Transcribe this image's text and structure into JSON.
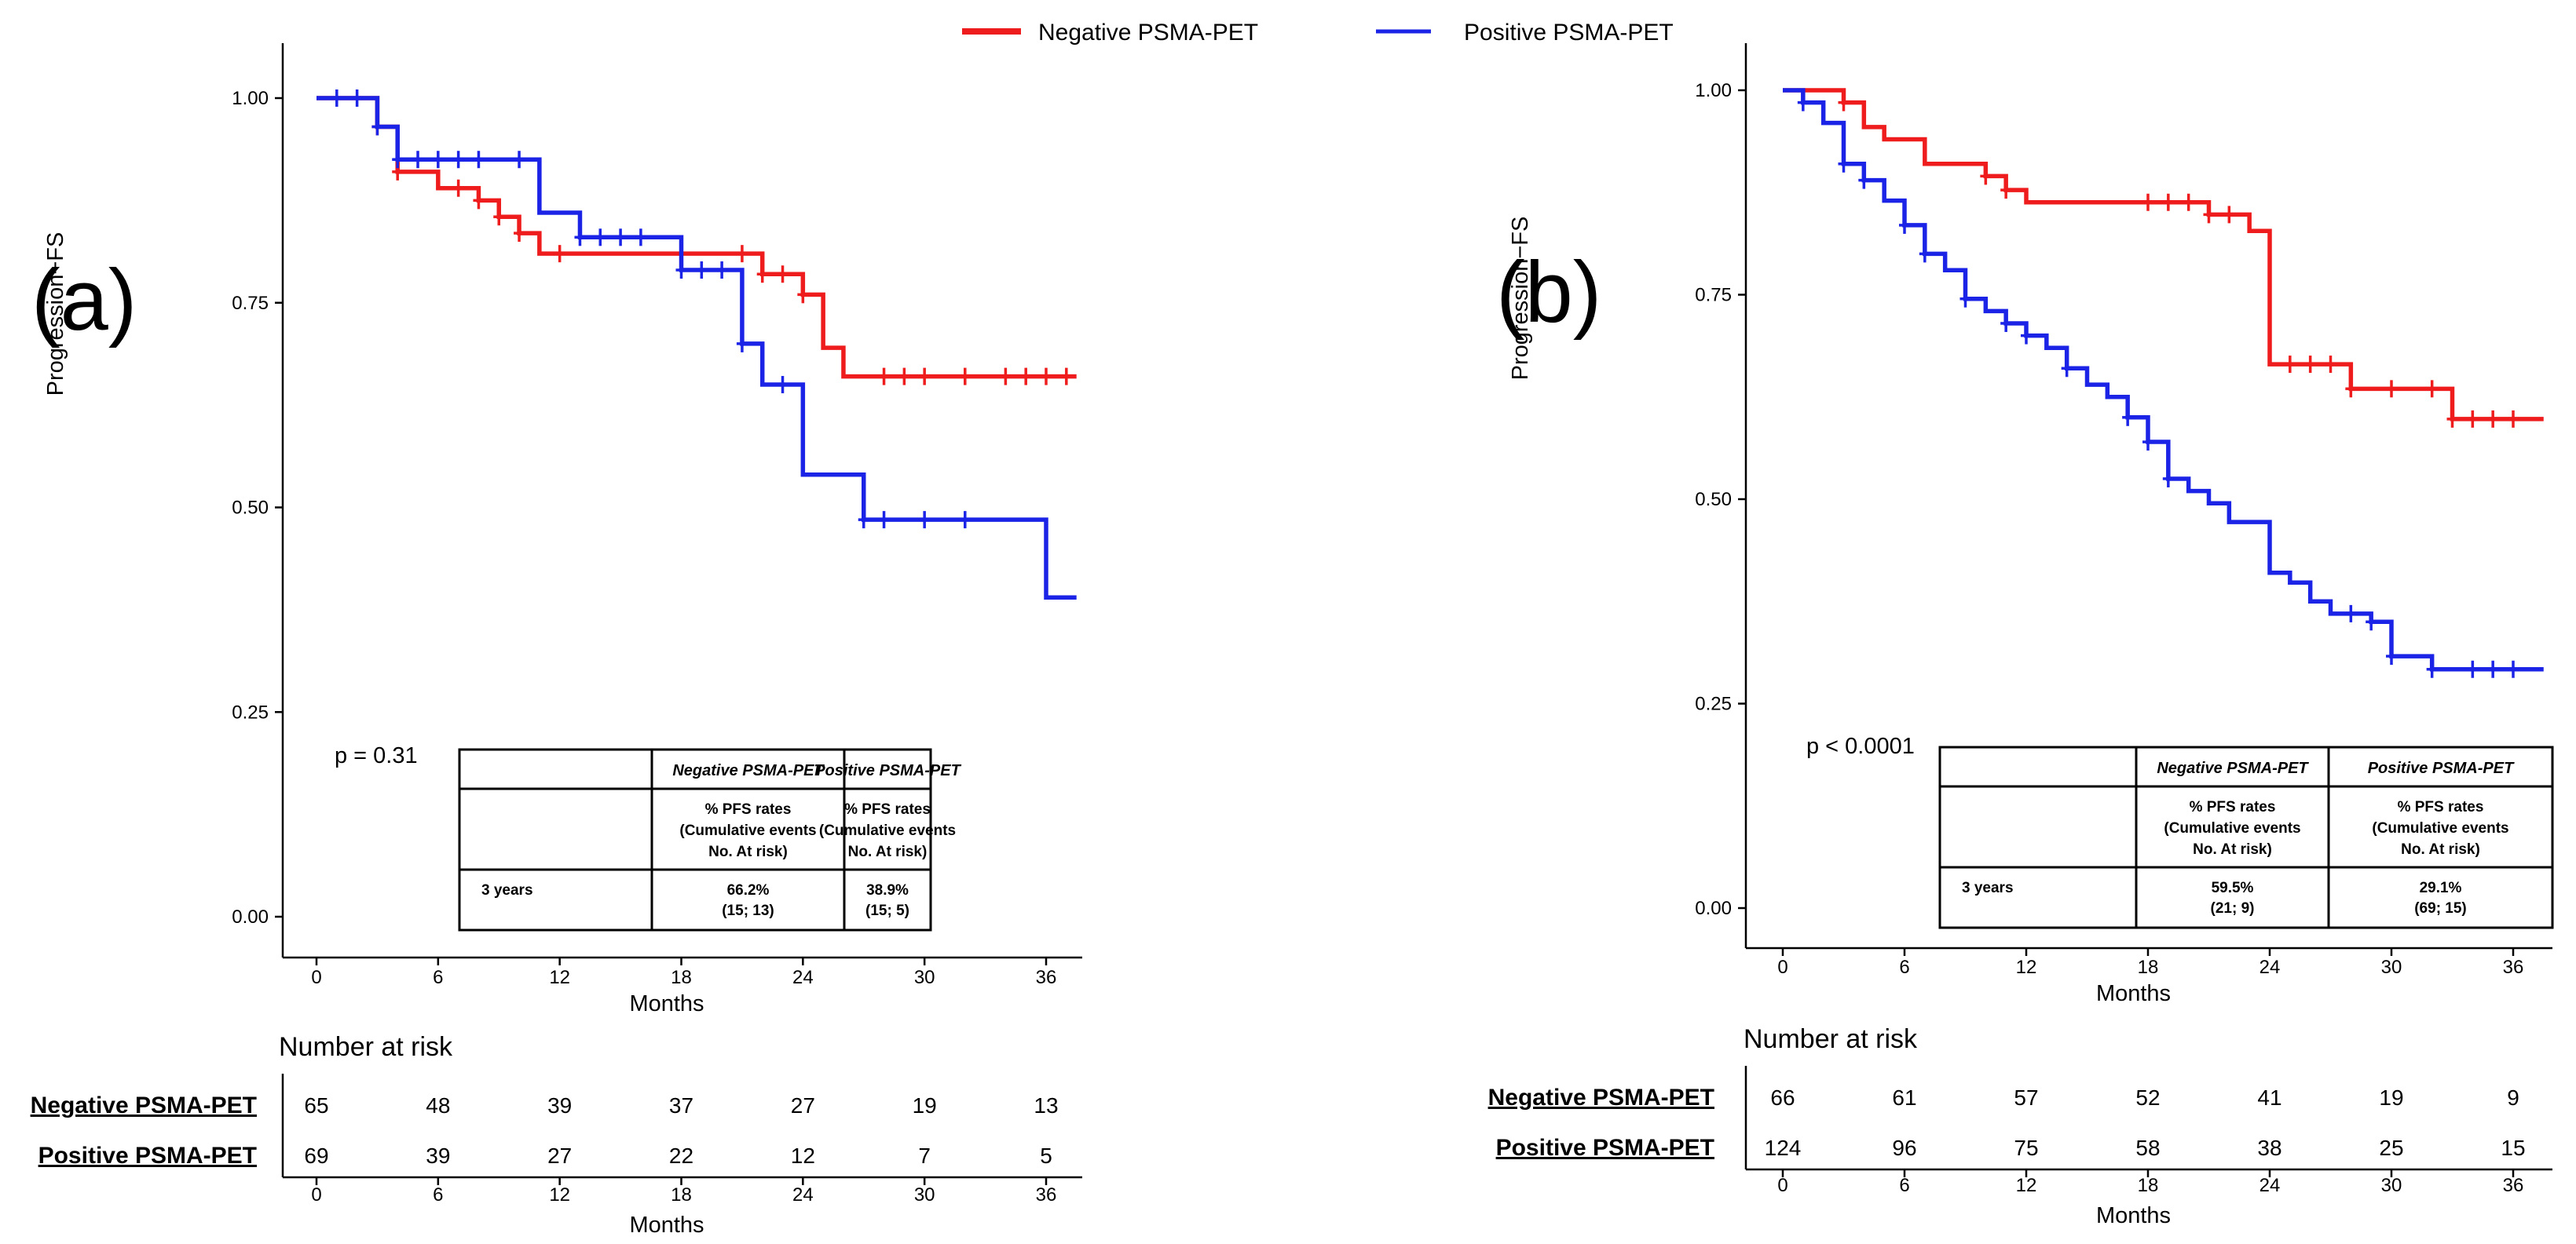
{
  "legend": {
    "items": [
      {
        "label": "Negative PSMA-PET",
        "color": "#ee1c1c"
      },
      {
        "label": "Positive PSMA-PET",
        "color": "#1a23e6"
      }
    ]
  },
  "chart_data": [
    {
      "type": "line",
      "panel_label": "(a)",
      "ylabel": "Progression−FS",
      "xlabel": "Months",
      "ylim": [
        0,
        1.05
      ],
      "xlim": [
        -2,
        37.5
      ],
      "xticks": [
        0,
        6,
        12,
        18,
        24,
        30,
        36
      ],
      "yticks": [
        "0.00",
        "0.25",
        "0.50",
        "0.75",
        "1.00"
      ],
      "p_value": "p = 0.31",
      "series": [
        {
          "name": "Negative PSMA-PET",
          "color": "#ee1c1c",
          "steps": [
            [
              0,
              1.0
            ],
            [
              3,
              0.965
            ],
            [
              4,
              0.91
            ],
            [
              6,
              0.89
            ],
            [
              8,
              0.875
            ],
            [
              9,
              0.855
            ],
            [
              10,
              0.835
            ],
            [
              11,
              0.81
            ],
            [
              21,
              0.81
            ],
            [
              22,
              0.785
            ],
            [
              24,
              0.76
            ],
            [
              25,
              0.695
            ],
            [
              26,
              0.66
            ],
            [
              37.5,
              0.66
            ]
          ],
          "censor": [
            [
              3,
              0.965
            ],
            [
              4,
              0.91
            ],
            [
              7,
              0.89
            ],
            [
              8,
              0.875
            ],
            [
              9,
              0.855
            ],
            [
              10,
              0.835
            ],
            [
              12,
              0.81
            ],
            [
              21,
              0.81
            ],
            [
              22,
              0.785
            ],
            [
              23,
              0.785
            ],
            [
              24,
              0.76
            ],
            [
              28,
              0.66
            ],
            [
              29,
              0.66
            ],
            [
              30,
              0.66
            ],
            [
              32,
              0.66
            ],
            [
              34,
              0.66
            ],
            [
              35,
              0.66
            ],
            [
              36,
              0.66
            ],
            [
              37,
              0.66
            ]
          ]
        },
        {
          "name": "Positive PSMA-PET",
          "color": "#1a23e6",
          "steps": [
            [
              0,
              1.0
            ],
            [
              3,
              0.965
            ],
            [
              4,
              0.925
            ],
            [
              11,
              0.86
            ],
            [
              13,
              0.83
            ],
            [
              18,
              0.79
            ],
            [
              21,
              0.7
            ],
            [
              22,
              0.65
            ],
            [
              24,
              0.54
            ],
            [
              27,
              0.485
            ],
            [
              36,
              0.39
            ],
            [
              37.5,
              0.39
            ]
          ],
          "censor": [
            [
              1,
              1.0
            ],
            [
              2,
              1.0
            ],
            [
              3,
              0.965
            ],
            [
              4,
              0.925
            ],
            [
              5,
              0.925
            ],
            [
              6,
              0.925
            ],
            [
              7,
              0.925
            ],
            [
              8,
              0.925
            ],
            [
              10,
              0.925
            ],
            [
              13,
              0.83
            ],
            [
              14,
              0.83
            ],
            [
              15,
              0.83
            ],
            [
              16,
              0.83
            ],
            [
              18,
              0.79
            ],
            [
              19,
              0.79
            ],
            [
              20,
              0.79
            ],
            [
              21,
              0.7
            ],
            [
              23,
              0.65
            ],
            [
              27,
              0.485
            ],
            [
              28,
              0.485
            ],
            [
              30,
              0.485
            ],
            [
              32,
              0.485
            ]
          ]
        }
      ],
      "table": {
        "col_headers": [
          "",
          "Negative PSMA-PET",
          "Positive PSMA-PET"
        ],
        "sub_header": [
          "% PFS rates",
          "(Cumulative events",
          "No. At risk)"
        ],
        "row_label": "3 years",
        "neg_rate": "66.2%",
        "neg_detail": "(15; 13)",
        "pos_rate": "38.9%",
        "pos_detail": "(15; 5)"
      },
      "risk": {
        "title": "Number at risk",
        "groups": [
          "Negative PSMA-PET",
          "Positive PSMA-PET"
        ],
        "values": [
          [
            65,
            48,
            39,
            37,
            27,
            19,
            13
          ],
          [
            69,
            39,
            27,
            22,
            12,
            7,
            5
          ]
        ],
        "xlabel": "Months"
      }
    },
    {
      "type": "line",
      "panel_label": "(b)",
      "ylabel": "Progression−FS",
      "xlabel": "Months",
      "ylim": [
        0,
        1.05
      ],
      "xlim": [
        -2,
        37.5
      ],
      "xticks": [
        0,
        6,
        12,
        18,
        24,
        30,
        36
      ],
      "yticks": [
        "0.00",
        "0.25",
        "0.50",
        "0.75",
        "1.00"
      ],
      "p_value": "p < 0.0001",
      "series": [
        {
          "name": "Negative PSMA-PET",
          "color": "#ee1c1c",
          "steps": [
            [
              0,
              1.0
            ],
            [
              3,
              0.985
            ],
            [
              4,
              0.955
            ],
            [
              5,
              0.94
            ],
            [
              7,
              0.91
            ],
            [
              10,
              0.895
            ],
            [
              11,
              0.878
            ],
            [
              12,
              0.863
            ],
            [
              21,
              0.848
            ],
            [
              23,
              0.828
            ],
            [
              24,
              0.665
            ],
            [
              28,
              0.635
            ],
            [
              33,
              0.598
            ],
            [
              37.5,
              0.598
            ]
          ],
          "censor": [
            [
              3,
              0.985
            ],
            [
              10,
              0.895
            ],
            [
              11,
              0.878
            ],
            [
              18,
              0.863
            ],
            [
              19,
              0.863
            ],
            [
              20,
              0.863
            ],
            [
              21,
              0.848
            ],
            [
              22,
              0.848
            ],
            [
              25,
              0.665
            ],
            [
              26,
              0.665
            ],
            [
              27,
              0.665
            ],
            [
              28,
              0.635
            ],
            [
              30,
              0.635
            ],
            [
              32,
              0.635
            ],
            [
              33,
              0.598
            ],
            [
              34,
              0.598
            ],
            [
              35,
              0.598
            ],
            [
              36,
              0.598
            ]
          ]
        },
        {
          "name": "Positive PSMA-PET",
          "color": "#1a23e6",
          "steps": [
            [
              0,
              1.0
            ],
            [
              1,
              0.985
            ],
            [
              2,
              0.96
            ],
            [
              3,
              0.91
            ],
            [
              4,
              0.89
            ],
            [
              5,
              0.865
            ],
            [
              6,
              0.835
            ],
            [
              7,
              0.8
            ],
            [
              8,
              0.78
            ],
            [
              9,
              0.745
            ],
            [
              10,
              0.73
            ],
            [
              11,
              0.715
            ],
            [
              12,
              0.7
            ],
            [
              13,
              0.685
            ],
            [
              14,
              0.66
            ],
            [
              15,
              0.64
            ],
            [
              16,
              0.625
            ],
            [
              17,
              0.6
            ],
            [
              18,
              0.57
            ],
            [
              19,
              0.525
            ],
            [
              20,
              0.51
            ],
            [
              21,
              0.495
            ],
            [
              22,
              0.472
            ],
            [
              24,
              0.41
            ],
            [
              25,
              0.398
            ],
            [
              26,
              0.375
            ],
            [
              27,
              0.36
            ],
            [
              29,
              0.35
            ],
            [
              30,
              0.308
            ],
            [
              32,
              0.292
            ],
            [
              37.5,
              0.292
            ]
          ],
          "censor": [
            [
              1,
              0.985
            ],
            [
              3,
              0.91
            ],
            [
              4,
              0.89
            ],
            [
              6,
              0.835
            ],
            [
              7,
              0.8
            ],
            [
              9,
              0.745
            ],
            [
              11,
              0.715
            ],
            [
              12,
              0.7
            ],
            [
              14,
              0.66
            ],
            [
              17,
              0.6
            ],
            [
              18,
              0.57
            ],
            [
              19,
              0.525
            ],
            [
              28,
              0.36
            ],
            [
              29,
              0.35
            ],
            [
              30,
              0.308
            ],
            [
              32,
              0.292
            ],
            [
              34,
              0.292
            ],
            [
              35,
              0.292
            ],
            [
              36,
              0.292
            ]
          ]
        }
      ],
      "table": {
        "col_headers": [
          "",
          "Negative PSMA-PET",
          "Positive PSMA-PET"
        ],
        "sub_header": [
          "% PFS rates",
          "(Cumulative events",
          "No. At risk)"
        ],
        "row_label": "3 years",
        "neg_rate": "59.5%",
        "neg_detail": "(21; 9)",
        "pos_rate": "29.1%",
        "pos_detail": "(69; 15)"
      },
      "risk": {
        "title": "Number at risk",
        "groups": [
          "Negative PSMA-PET",
          "Positive PSMA-PET"
        ],
        "values": [
          [
            66,
            61,
            57,
            52,
            41,
            19,
            9
          ],
          [
            124,
            96,
            75,
            58,
            38,
            25,
            15
          ]
        ],
        "xlabel": "Months"
      }
    }
  ]
}
